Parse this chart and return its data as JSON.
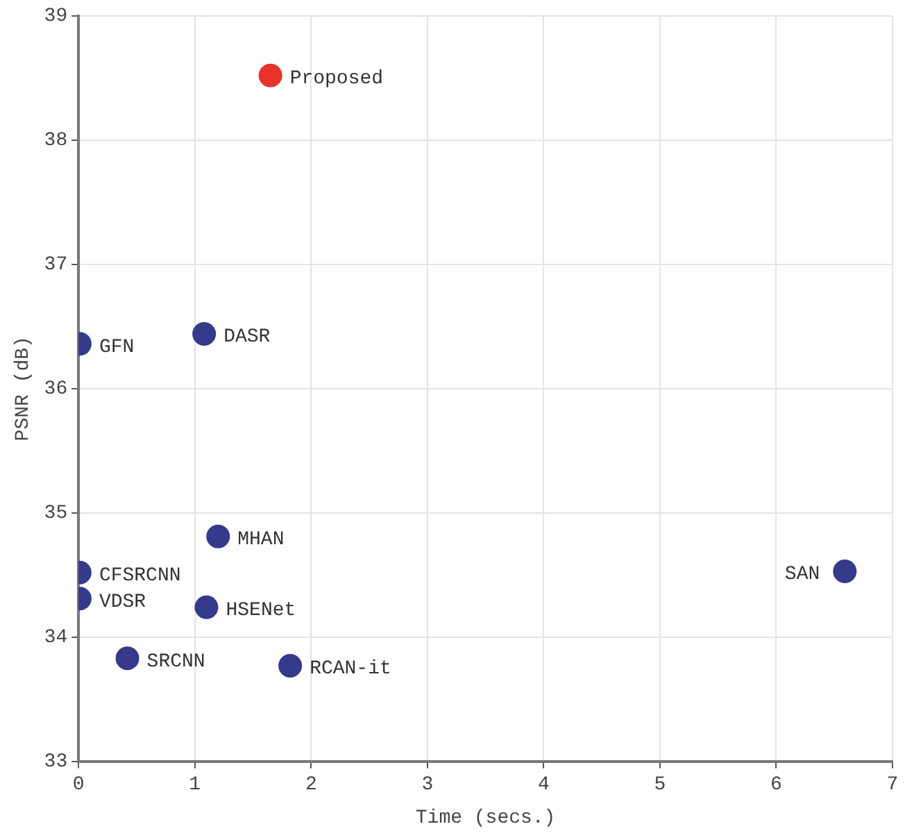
{
  "chart_data": {
    "type": "scatter",
    "xlabel": "Time (secs.)",
    "ylabel": "PSNR (dB)",
    "xlim": [
      0,
      7
    ],
    "xticks": [
      0,
      1,
      2,
      3,
      4,
      5,
      6,
      7
    ],
    "ylim": [
      33,
      39
    ],
    "yticks": [
      33,
      34,
      35,
      36,
      37,
      38,
      39
    ],
    "grid": true,
    "legend": false,
    "marker": "circle",
    "series": [
      {
        "name": "Proposed",
        "color": "#e8322a",
        "x": [
          1.65
        ],
        "values": [
          38.52
        ]
      },
      {
        "name": "GFN",
        "color": "#343a8c",
        "x": [
          0.01
        ],
        "values": [
          36.36
        ]
      },
      {
        "name": "DASR",
        "color": "#343a8c",
        "x": [
          1.08
        ],
        "values": [
          36.44
        ]
      },
      {
        "name": "MHAN",
        "color": "#343a8c",
        "x": [
          1.2
        ],
        "values": [
          34.81
        ]
      },
      {
        "name": "CFSRCNN",
        "color": "#343a8c",
        "x": [
          0.01
        ],
        "values": [
          34.52
        ]
      },
      {
        "name": "VDSR",
        "color": "#343a8c",
        "x": [
          0.01
        ],
        "values": [
          34.31
        ]
      },
      {
        "name": "HSENet",
        "color": "#343a8c",
        "x": [
          1.1
        ],
        "values": [
          34.24
        ]
      },
      {
        "name": "SRCNN",
        "color": "#343a8c",
        "x": [
          0.42
        ],
        "values": [
          33.83
        ]
      },
      {
        "name": "RCAN-it",
        "color": "#343a8c",
        "x": [
          1.82
        ],
        "values": [
          33.77
        ]
      },
      {
        "name": "SAN",
        "color": "#343a8c",
        "x": [
          6.59
        ],
        "values": [
          34.53
        ]
      }
    ]
  }
}
